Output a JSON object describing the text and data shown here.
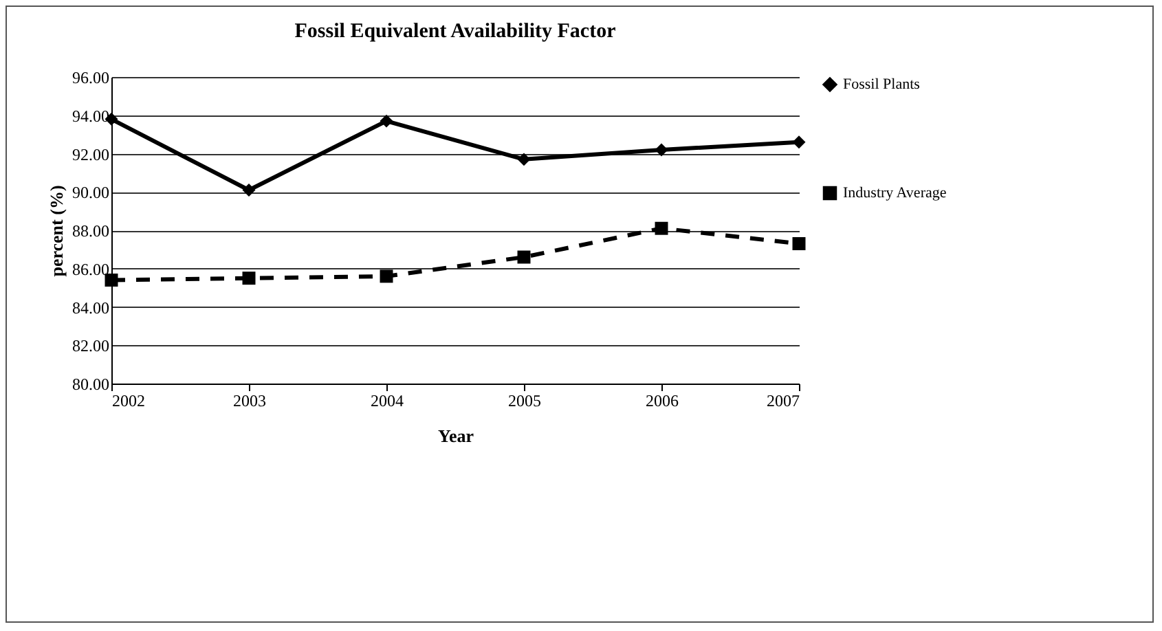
{
  "chart_data": {
    "type": "line",
    "title": "Fossil Equivalent Availability Factor",
    "xlabel": "Year",
    "ylabel": "percent (%)",
    "categories": [
      "2002",
      "2003",
      "2004",
      "2005",
      "2006",
      "2007"
    ],
    "series": [
      {
        "name": "Fossil Plants",
        "color": "#000000",
        "marker": "diamond",
        "line_style": "solid",
        "values": [
          93.8,
          90.1,
          93.7,
          91.7,
          92.2,
          92.6
        ]
      },
      {
        "name": "Industry Average",
        "color": "#000000",
        "marker": "square",
        "line_style": "dashed",
        "values": [
          85.4,
          85.5,
          85.6,
          86.6,
          88.1,
          87.3
        ]
      }
    ],
    "ylim": [
      80,
      96
    ],
    "yticks": [
      {
        "value": 80,
        "label": "80.00"
      },
      {
        "value": 82,
        "label": "82.00"
      },
      {
        "value": 84,
        "label": "84.00"
      },
      {
        "value": 86,
        "label": "86.00"
      },
      {
        "value": 88,
        "label": "88.00"
      },
      {
        "value": 90,
        "label": "90.00"
      },
      {
        "value": 92,
        "label": "92.00"
      },
      {
        "value": 94,
        "label": "94.00"
      },
      {
        "value": 96,
        "label": "96.00"
      }
    ],
    "grid": "y",
    "legend": "right"
  }
}
